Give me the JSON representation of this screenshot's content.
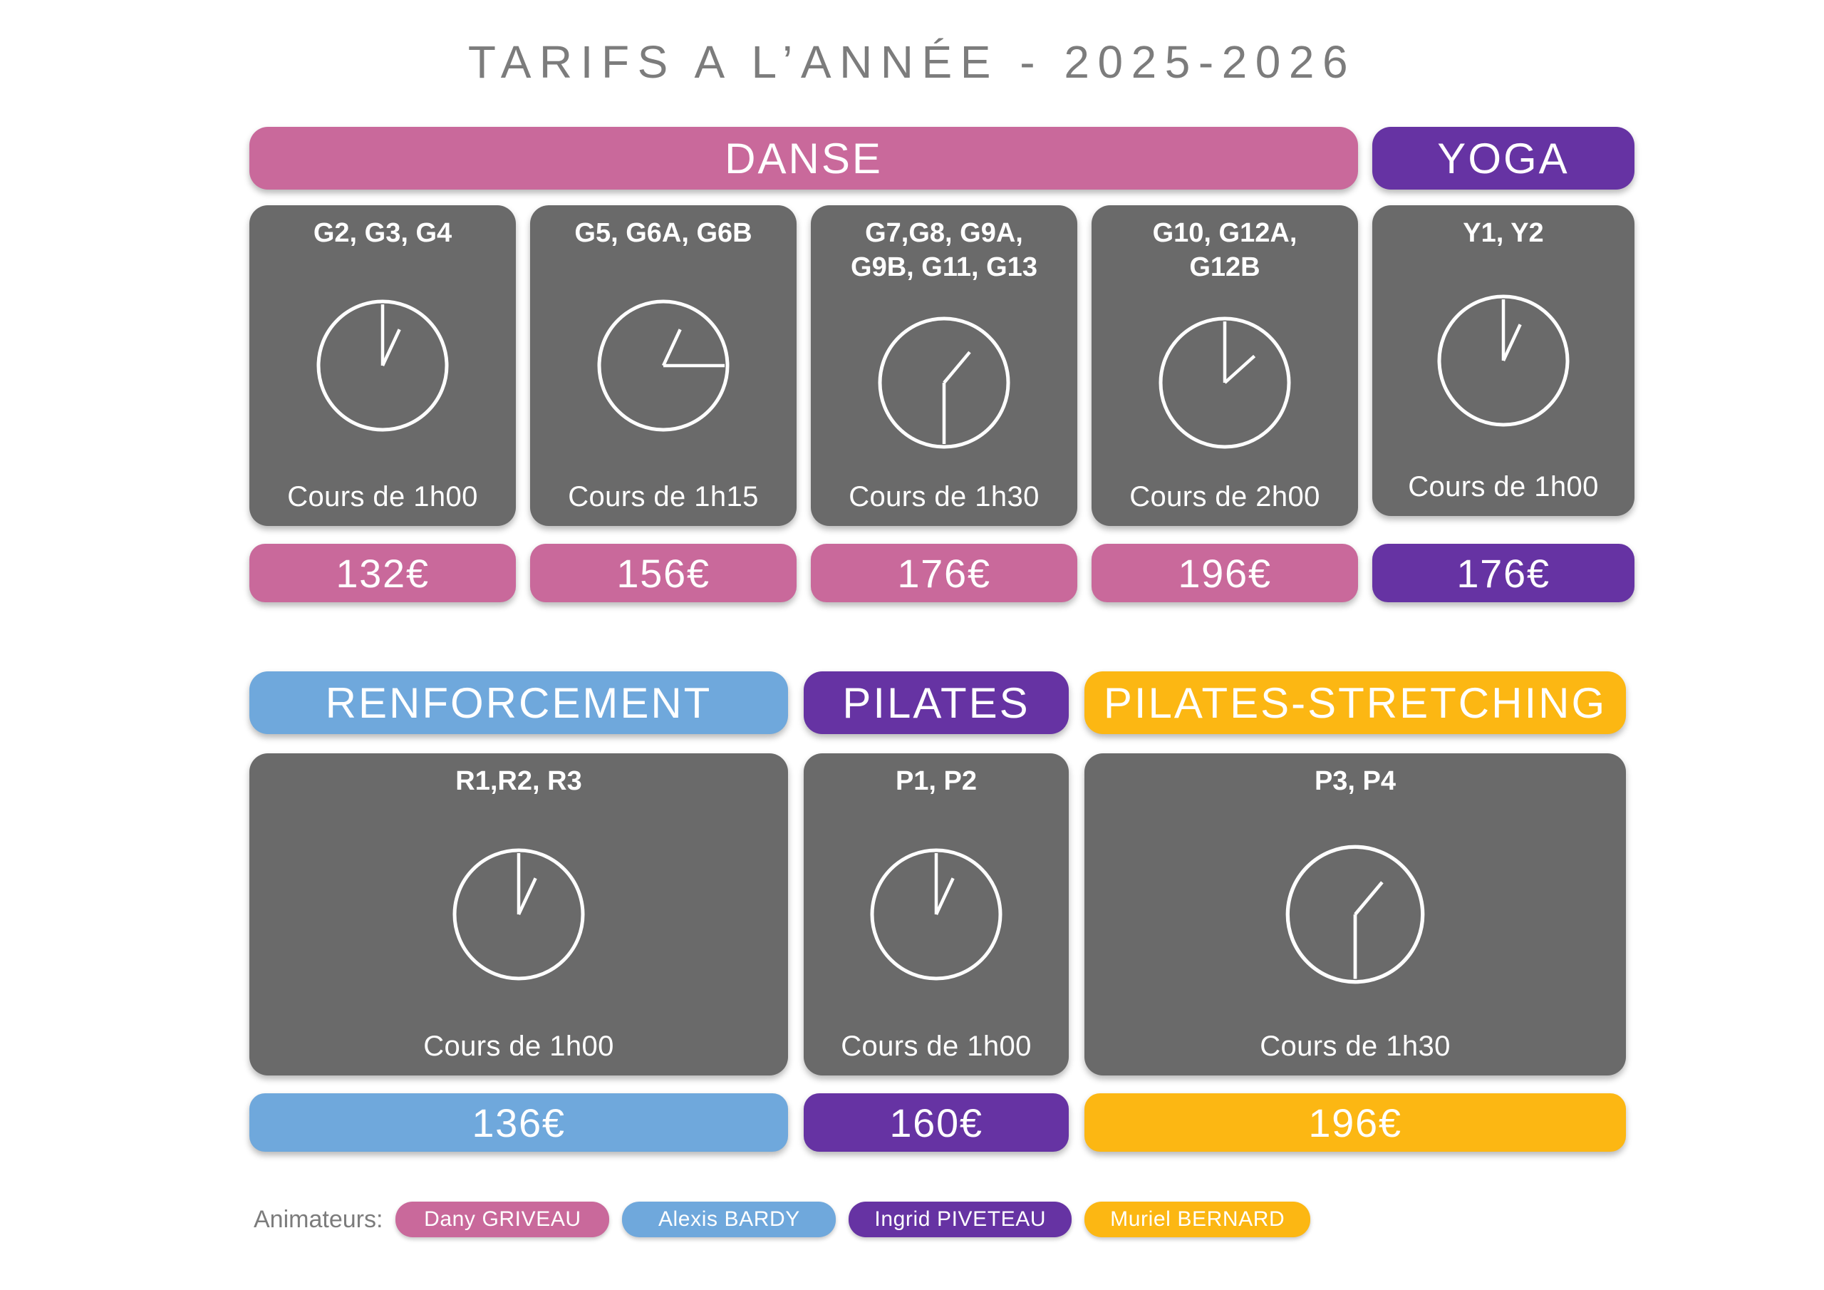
{
  "title": "TARIFS A L’ANNÉE - 2025-2026",
  "palette": {
    "danse_pink": "#c9699b",
    "yoga_pilates_purple": "#6633a3",
    "renforcement_blue": "#6fa8dc",
    "stretching_yellow": "#fcb713",
    "card_gray": "#6a6a6a",
    "title_gray": "#7c7c7c"
  },
  "sections": {
    "row1": {
      "headers": [
        {
          "label": "DANSE",
          "color": "#c9699b"
        },
        {
          "label": "YOGA",
          "color": "#6633a3"
        }
      ],
      "cards": [
        {
          "groups": "G2, G3, G4",
          "duration": "Cours de 1h00",
          "price": "132€",
          "price_color": "#c9699b",
          "clock": {
            "time": "1h00",
            "hour_deg": 25,
            "minute_deg": 0
          }
        },
        {
          "groups": "G5, G6A, G6B",
          "duration": "Cours de 1h15",
          "price": "156€",
          "price_color": "#c9699b",
          "clock": {
            "time": "1h15",
            "hour_deg": 25,
            "minute_deg": 90
          }
        },
        {
          "groups": "G7,G8, G9A,\nG9B, G11, G13",
          "duration": "Cours de 1h30",
          "price": "176€",
          "price_color": "#c9699b",
          "clock": {
            "time": "1h30",
            "hour_deg": 40,
            "minute_deg": 180
          }
        },
        {
          "groups": "G10, G12A,\nG12B",
          "duration": "Cours de 2h00",
          "price": "196€",
          "price_color": "#c9699b",
          "clock": {
            "time": "2h00",
            "hour_deg": 48,
            "minute_deg": 0
          }
        },
        {
          "groups": "Y1, Y2",
          "duration": "Cours de 1h00",
          "price": "176€",
          "price_color": "#6633a3",
          "clock": {
            "time": "1h00",
            "hour_deg": 25,
            "minute_deg": 0
          }
        }
      ]
    },
    "row2": {
      "headers": [
        {
          "label": "RENFORCEMENT",
          "color": "#6fa8dc"
        },
        {
          "label": "PILATES",
          "color": "#6633a3"
        },
        {
          "label": "PILATES-STRETCHING",
          "color": "#fcb713"
        }
      ],
      "cards": [
        {
          "groups": "R1,R2, R3",
          "duration": "Cours de 1h00",
          "price": "136€",
          "price_color": "#6fa8dc",
          "clock": {
            "time": "1h00",
            "hour_deg": 25,
            "minute_deg": 0
          }
        },
        {
          "groups": "P1, P2",
          "duration": "Cours de 1h00",
          "price": "160€",
          "price_color": "#6633a3",
          "clock": {
            "time": "1h00",
            "hour_deg": 25,
            "minute_deg": 0
          }
        },
        {
          "groups": "P3, P4",
          "duration": "Cours de 1h30",
          "price": "196€",
          "price_color": "#fcb713",
          "clock": {
            "time": "1h30",
            "hour_deg": 40,
            "minute_deg": 180
          }
        }
      ]
    }
  },
  "footer": {
    "label": "Animateurs:",
    "animators": [
      {
        "name": "Dany GRIVEAU",
        "color": "#c9699b"
      },
      {
        "name": "Alexis BARDY",
        "color": "#6fa8dc"
      },
      {
        "name": "Ingrid PIVETEAU",
        "color": "#6633a3"
      },
      {
        "name": "Muriel BERNARD",
        "color": "#fcb713"
      }
    ]
  }
}
